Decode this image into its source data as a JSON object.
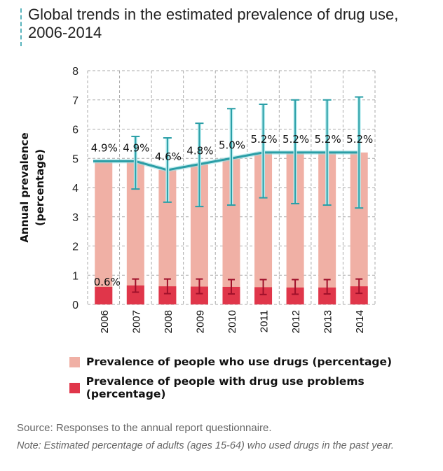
{
  "title": "Global trends in the estimated prevalence of drug use, 2006-2014",
  "chart_data": {
    "type": "bar",
    "title": "Global trends in the estimated prevalence of drug use, 2006-2014",
    "ylabel": "Annual prevalence (percentage)",
    "ylim": [
      0,
      8
    ],
    "yticks": [
      0,
      1,
      2,
      3,
      4,
      5,
      6,
      7,
      8
    ],
    "grid": true,
    "legend_position": "bottom",
    "categories": [
      "2006",
      "2007",
      "2008",
      "2009",
      "2010",
      "2011",
      "2012",
      "2013",
      "2014"
    ],
    "series": [
      {
        "name": "Prevalence of people who use drugs (percentage)",
        "color": "#f0b0a5",
        "values": [
          4.9,
          4.9,
          4.6,
          4.8,
          5.0,
          5.2,
          5.2,
          5.2,
          5.2
        ],
        "labels": [
          "4.9%",
          "4.9%",
          "4.6%",
          "4.8%",
          "5.0%",
          "5.2%",
          "5.2%",
          "5.2%",
          "5.2%"
        ],
        "error_low": [
          null,
          3.95,
          3.5,
          3.35,
          3.4,
          3.65,
          3.45,
          3.4,
          3.3
        ],
        "error_high": [
          null,
          5.75,
          5.7,
          6.2,
          6.7,
          6.85,
          7.0,
          7.0,
          7.1
        ],
        "line_color": "#2a9ea6"
      },
      {
        "name": "Prevalence of people with drug use problems (percentage)",
        "color": "#e0364a",
        "values": [
          0.6,
          0.65,
          0.62,
          0.61,
          0.6,
          0.59,
          0.58,
          0.58,
          0.62
        ],
        "labels": [
          "0.6%"
        ],
        "error_low": [
          null,
          0.42,
          0.37,
          0.37,
          0.36,
          0.34,
          0.35,
          0.36,
          0.38
        ],
        "error_high": [
          null,
          0.87,
          0.87,
          0.87,
          0.85,
          0.85,
          0.85,
          0.85,
          0.87
        ],
        "error_color": "#a0102a"
      }
    ]
  },
  "source": "Source: Responses to the annual report questionnaire.",
  "note": "Note: Estimated percentage of adults (ages 15-64) who used drugs in the past year."
}
